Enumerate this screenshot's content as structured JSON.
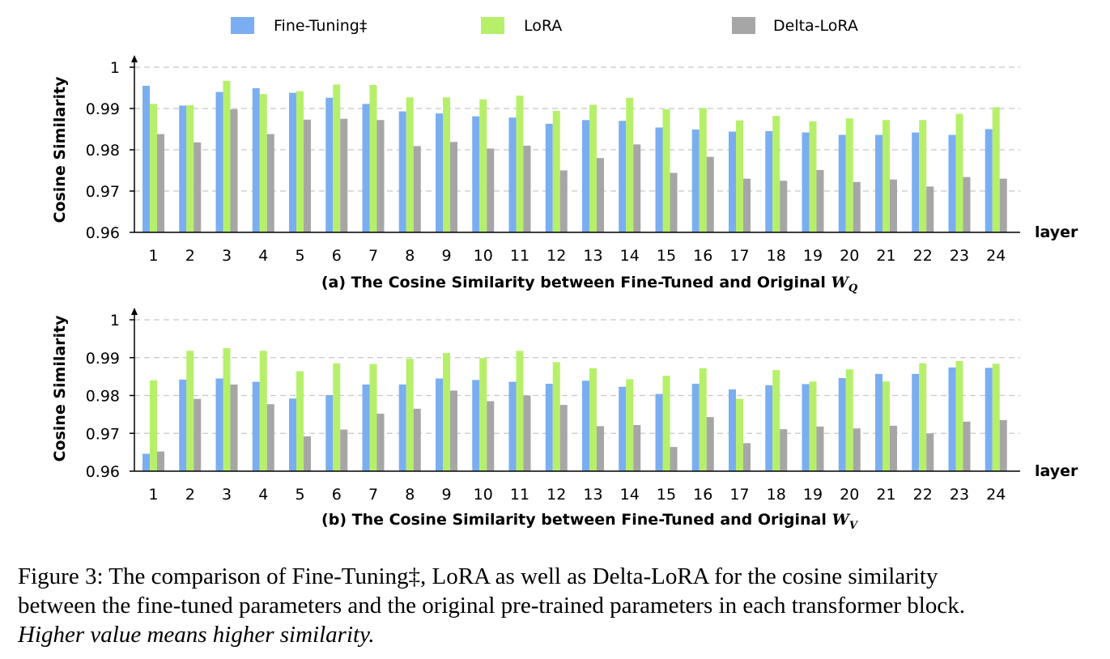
{
  "legend": [
    {
      "label": "Fine-Tuning‡",
      "color": "#7aaef0"
    },
    {
      "label": "LoRA",
      "color": "#b6f06a"
    },
    {
      "label": "Delta-LoRA",
      "color": "#a6a6a6"
    }
  ],
  "caption": {
    "line1": "Figure 3: The comparison of Fine-Tuning‡, LoRA as well as Delta-LoRA for the cosine similarity",
    "line2": "between the fine-tuned parameters and the original pre-trained parameters in each transformer block.",
    "line3": "Higher value means higher similarity."
  },
  "chart_data": [
    {
      "type": "bar",
      "title": "(a) The Cosine Similarity between Fine-Tuned and Original W_Q",
      "title_text": "(a) The Cosine Similarity between Fine-Tuned and Original",
      "title_math": "W",
      "title_sub": "Q",
      "xlabel": "layer",
      "ylabel": "Cosine Similarity",
      "ylim": [
        0.96,
        1.0
      ],
      "yticks": [
        0.96,
        0.97,
        0.98,
        0.99,
        1.0
      ],
      "ytick_labels": [
        "0.96",
        "0.97",
        "0.98",
        "0.99",
        "1"
      ],
      "grid": true,
      "categories": [
        "1",
        "2",
        "3",
        "4",
        "5",
        "6",
        "7",
        "8",
        "9",
        "10",
        "11",
        "12",
        "13",
        "14",
        "15",
        "16",
        "17",
        "18",
        "19",
        "20",
        "21",
        "22",
        "23",
        "24"
      ],
      "series": [
        {
          "name": "Fine-Tuning‡",
          "values": [
            0.9955,
            0.9907,
            0.994,
            0.9949,
            0.9938,
            0.9926,
            0.9911,
            0.9893,
            0.9888,
            0.9881,
            0.9878,
            0.9863,
            0.9872,
            0.987,
            0.9854,
            0.9849,
            0.9844,
            0.9845,
            0.9842,
            0.9836,
            0.9836,
            0.9842,
            0.9836,
            0.985
          ]
        },
        {
          "name": "LoRA",
          "values": [
            0.9911,
            0.9908,
            0.9967,
            0.9935,
            0.9942,
            0.9958,
            0.9957,
            0.9927,
            0.9927,
            0.9922,
            0.9931,
            0.9894,
            0.9909,
            0.9926,
            0.9898,
            0.9901,
            0.9871,
            0.9882,
            0.9869,
            0.9876,
            0.9872,
            0.9872,
            0.9887,
            0.9903
          ]
        },
        {
          "name": "Delta-LoRA",
          "values": [
            0.9838,
            0.9818,
            0.9898,
            0.9838,
            0.9873,
            0.9875,
            0.9872,
            0.9809,
            0.9819,
            0.9803,
            0.981,
            0.975,
            0.978,
            0.9813,
            0.9744,
            0.9783,
            0.973,
            0.9725,
            0.9751,
            0.9722,
            0.9728,
            0.9711,
            0.9734,
            0.973
          ]
        }
      ]
    },
    {
      "type": "bar",
      "title": "(b) The Cosine Similarity between Fine-Tuned and Original W_V",
      "title_text": "(b) The Cosine Similarity between Fine-Tuned and Original",
      "title_math": "W",
      "title_sub": "V",
      "xlabel": "layer",
      "ylabel": "Cosine Similarity",
      "ylim": [
        0.96,
        1.0
      ],
      "yticks": [
        0.96,
        0.97,
        0.98,
        0.99,
        1.0
      ],
      "ytick_labels": [
        "0.96",
        "0.97",
        "0.98",
        "0.99",
        "1"
      ],
      "grid": true,
      "categories": [
        "1",
        "2",
        "3",
        "4",
        "5",
        "6",
        "7",
        "8",
        "9",
        "10",
        "11",
        "12",
        "13",
        "14",
        "15",
        "16",
        "17",
        "18",
        "19",
        "20",
        "21",
        "22",
        "23",
        "24"
      ],
      "series": [
        {
          "name": "Fine-Tuning‡",
          "values": [
            0.9646,
            0.9842,
            0.9845,
            0.9836,
            0.9792,
            0.9801,
            0.9829,
            0.9829,
            0.9845,
            0.9841,
            0.9836,
            0.9831,
            0.9839,
            0.9823,
            0.9804,
            0.9831,
            0.9816,
            0.9827,
            0.983,
            0.9846,
            0.9857,
            0.9857,
            0.9874,
            0.9873
          ]
        },
        {
          "name": "LoRA",
          "values": [
            0.984,
            0.9918,
            0.9925,
            0.9918,
            0.9864,
            0.9885,
            0.9883,
            0.9897,
            0.9912,
            0.9899,
            0.9918,
            0.9888,
            0.9872,
            0.9843,
            0.9852,
            0.9872,
            0.9791,
            0.9867,
            0.9837,
            0.9869,
            0.9837,
            0.9885,
            0.9891,
            0.9884
          ]
        },
        {
          "name": "Delta-LoRA",
          "values": [
            0.9652,
            0.9791,
            0.9829,
            0.9777,
            0.9692,
            0.971,
            0.9752,
            0.9765,
            0.9813,
            0.9785,
            0.98,
            0.9775,
            0.9719,
            0.9722,
            0.9664,
            0.9743,
            0.9674,
            0.9711,
            0.9718,
            0.9713,
            0.972,
            0.97,
            0.9731,
            0.9735
          ]
        }
      ]
    }
  ]
}
